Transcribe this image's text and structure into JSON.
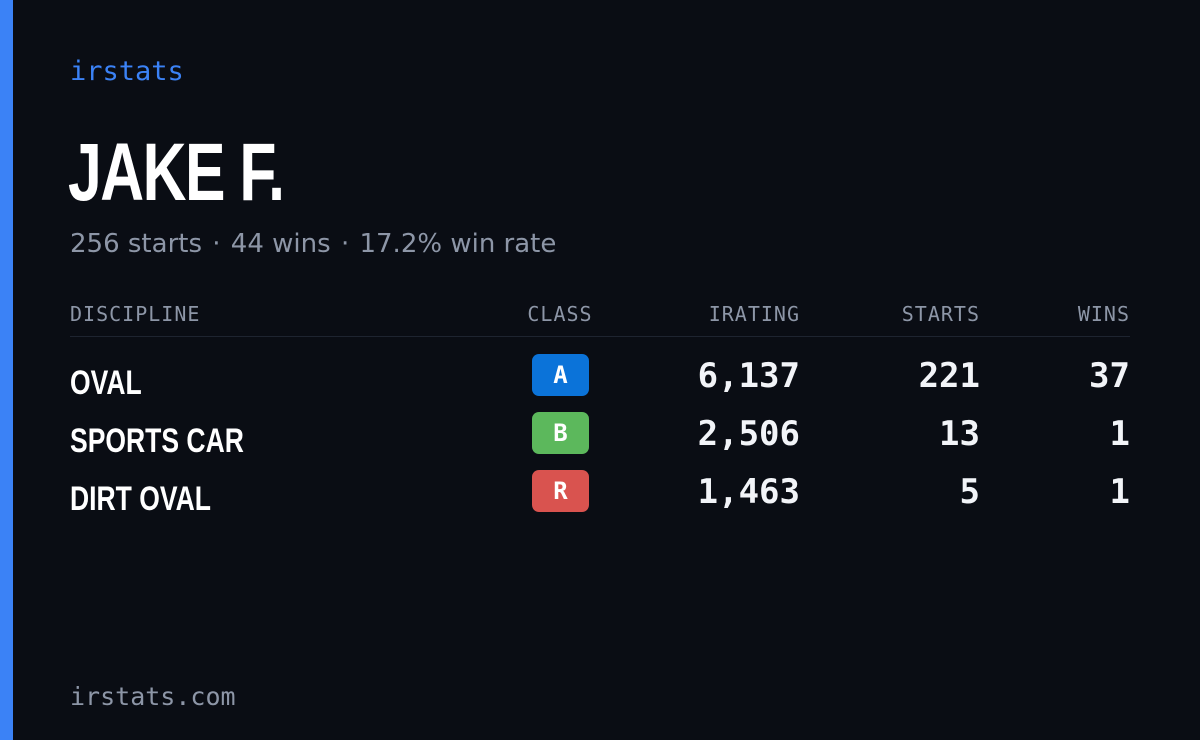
{
  "brand": "irstats",
  "driver": {
    "name": "JAKE F.",
    "starts_text": "256 starts",
    "wins_text": "44 wins",
    "win_rate_text": "17.2% win rate",
    "separator": "·"
  },
  "table": {
    "headers": {
      "discipline": "DISCIPLINE",
      "class": "CLASS",
      "irating": "IRATING",
      "starts": "STARTS",
      "wins": "WINS"
    },
    "rows": [
      {
        "discipline": "OVAL",
        "class": "A",
        "class_color": "#0b73d9",
        "irating": "6,137",
        "starts": "221",
        "wins": "37"
      },
      {
        "discipline": "SPORTS CAR",
        "class": "B",
        "class_color": "#5cb85c",
        "irating": "2,506",
        "starts": "13",
        "wins": "1"
      },
      {
        "discipline": "DIRT OVAL",
        "class": "R",
        "class_color": "#d9534f",
        "irating": "1,463",
        "starts": "5",
        "wins": "1"
      }
    ]
  },
  "footer": {
    "site": "irstats.com"
  },
  "colors": {
    "accent": "#3b82f6",
    "background": "#0a0d14",
    "muted": "#8d96a7"
  }
}
